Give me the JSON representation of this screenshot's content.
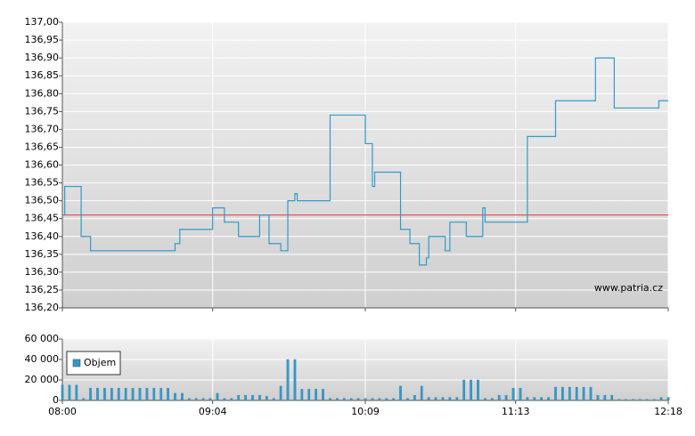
{
  "chart_data": [
    {
      "type": "line",
      "step": "after",
      "color": "#3399cc",
      "x": [
        "08:00",
        "08:01",
        "08:08",
        "08:12",
        "08:48",
        "08:50",
        "09:04",
        "09:09",
        "09:15",
        "09:24",
        "09:28",
        "09:33",
        "09:36",
        "09:39",
        "09:40",
        "09:54",
        "10:09",
        "10:12",
        "10:13",
        "10:24",
        "10:28",
        "10:32",
        "10:35",
        "10:36",
        "10:43",
        "10:45",
        "10:52",
        "10:59",
        "11:00",
        "11:18",
        "11:30",
        "11:47",
        "11:55",
        "12:14",
        "12:18"
      ],
      "values": [
        136.46,
        136.54,
        136.4,
        136.36,
        136.38,
        136.42,
        136.48,
        136.44,
        136.4,
        136.46,
        136.38,
        136.36,
        136.5,
        136.52,
        136.5,
        136.74,
        136.66,
        136.54,
        136.58,
        136.42,
        136.38,
        136.32,
        136.34,
        136.4,
        136.36,
        136.44,
        136.4,
        136.48,
        136.44,
        136.68,
        136.78,
        136.9,
        136.76,
        136.78,
        136.78
      ],
      "xlim": [
        "08:00",
        "12:18"
      ],
      "ylim": [
        136.2,
        137.0
      ],
      "yticks": [
        {
          "value": 136.2,
          "label": "136,20"
        },
        {
          "value": 136.25,
          "label": "136,25"
        },
        {
          "value": 136.3,
          "label": "136,30"
        },
        {
          "value": 136.35,
          "label": "136,35"
        },
        {
          "value": 136.4,
          "label": "136,40"
        },
        {
          "value": 136.45,
          "label": "136,45"
        },
        {
          "value": 136.5,
          "label": "136,50"
        },
        {
          "value": 136.55,
          "label": "136,55"
        },
        {
          "value": 136.6,
          "label": "136,60"
        },
        {
          "value": 136.65,
          "label": "136,65"
        },
        {
          "value": 136.7,
          "label": "136,70"
        },
        {
          "value": 136.75,
          "label": "136,75"
        },
        {
          "value": 136.8,
          "label": "136,80"
        },
        {
          "value": 136.85,
          "label": "136,85"
        },
        {
          "value": 136.9,
          "label": "136,90"
        },
        {
          "value": 136.95,
          "label": "136,95"
        },
        {
          "value": 137.0,
          "label": "137,00"
        }
      ],
      "reference_line": {
        "value": 136.46,
        "color": "#e03c3c"
      },
      "grid": true,
      "watermark": "www.patria.cz"
    },
    {
      "type": "bar",
      "x": [
        "08:00",
        "08:03",
        "08:06",
        "08:09",
        "08:12",
        "08:15",
        "08:18",
        "08:21",
        "08:24",
        "08:27",
        "08:30",
        "08:33",
        "08:36",
        "08:39",
        "08:42",
        "08:45",
        "08:48",
        "08:51",
        "08:54",
        "08:57",
        "09:00",
        "09:03",
        "09:06",
        "09:09",
        "09:12",
        "09:15",
        "09:18",
        "09:21",
        "09:24",
        "09:27",
        "09:30",
        "09:33",
        "09:36",
        "09:39",
        "09:42",
        "09:45",
        "09:48",
        "09:51",
        "09:54",
        "09:57",
        "10:00",
        "10:03",
        "10:06",
        "10:09",
        "10:12",
        "10:15",
        "10:18",
        "10:21",
        "10:24",
        "10:27",
        "10:30",
        "10:33",
        "10:36",
        "10:39",
        "10:42",
        "10:45",
        "10:48",
        "10:51",
        "10:54",
        "10:57",
        "11:00",
        "11:03",
        "11:06",
        "11:09",
        "11:12",
        "11:15",
        "11:18",
        "11:21",
        "11:24",
        "11:27",
        "11:30",
        "11:33",
        "11:36",
        "11:39",
        "11:42",
        "11:45",
        "11:48",
        "11:51",
        "11:54",
        "11:57",
        "12:00",
        "12:03",
        "12:06",
        "12:09",
        "12:12",
        "12:15",
        "12:18"
      ],
      "series": [
        {
          "name": "Objem",
          "color": "#3399cc",
          "values": [
            15000,
            15000,
            15000,
            2000,
            12000,
            12000,
            12000,
            12000,
            12000,
            12000,
            12000,
            12000,
            12000,
            12000,
            12000,
            12000,
            7000,
            7000,
            2000,
            2000,
            2000,
            2000,
            7000,
            2000,
            2000,
            5000,
            5000,
            5000,
            5000,
            4000,
            2000,
            14000,
            40000,
            40000,
            11000,
            11000,
            11000,
            11000,
            2000,
            2000,
            2000,
            2000,
            2000,
            2000,
            2000,
            2000,
            2000,
            2000,
            14000,
            2000,
            5000,
            14000,
            3000,
            3000,
            3000,
            3000,
            3000,
            20000,
            20000,
            20000,
            2000,
            2000,
            5000,
            5000,
            12000,
            12000,
            3000,
            3000,
            3000,
            3000,
            13000,
            13000,
            13000,
            13000,
            13000,
            13000,
            5000,
            5000,
            5000,
            1000,
            1000,
            1000,
            1000,
            1000,
            1000,
            3000,
            3000
          ]
        }
      ],
      "xlim": [
        "08:00",
        "12:18"
      ],
      "xticks": [
        "08:00",
        "09:04",
        "10:09",
        "11:13",
        "12:18"
      ],
      "ylim": [
        0,
        60000
      ],
      "yticks": [
        {
          "value": 0,
          "label": "0"
        },
        {
          "value": 20000,
          "label": "20 000"
        },
        {
          "value": 40000,
          "label": "40 000"
        },
        {
          "value": 60000,
          "label": "60 000"
        }
      ],
      "grid": true,
      "legend": "top-left"
    }
  ]
}
